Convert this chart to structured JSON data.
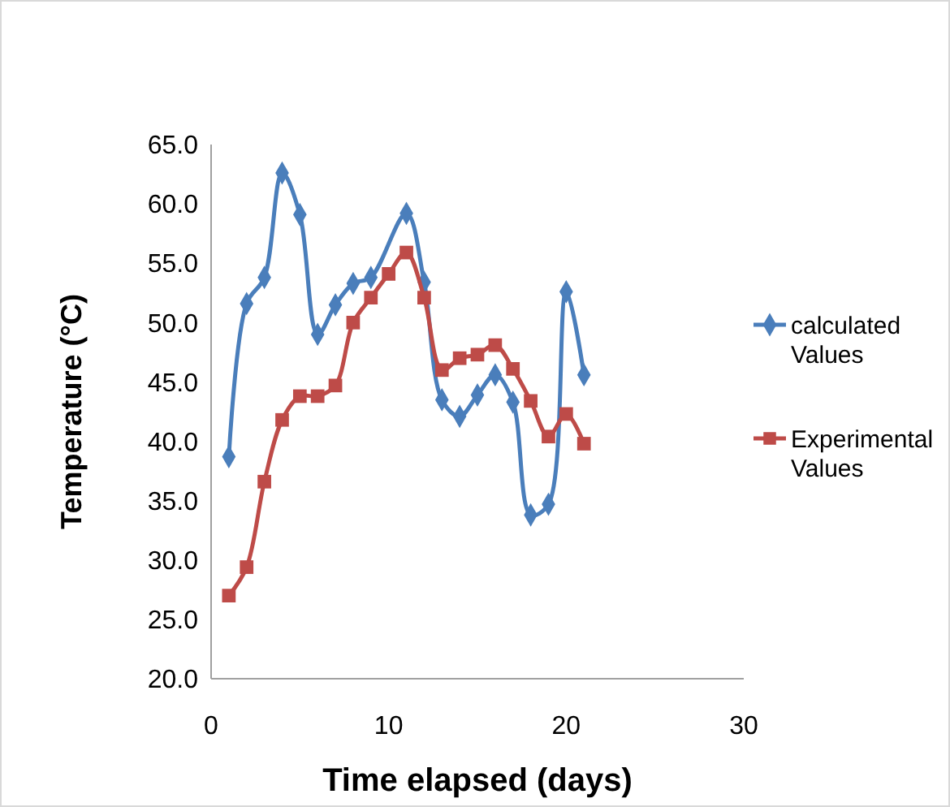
{
  "chart_data": {
    "type": "line",
    "xlabel": "Time elapsed (days)",
    "ylabel": "Temperature (°C)",
    "x": [
      1,
      2,
      3,
      4,
      5,
      6,
      7,
      8,
      9,
      10,
      11,
      12,
      13,
      14,
      15,
      16,
      17,
      18,
      19,
      20,
      21
    ],
    "series": [
      {
        "name": "calculated Values",
        "color": "#4a7ebb",
        "marker": "diamond",
        "values": [
          38.7,
          51.6,
          53.8,
          62.6,
          59.1,
          49.0,
          51.5,
          53.3,
          53.8,
          null,
          59.2,
          53.4,
          43.5,
          42.1,
          43.9,
          45.6,
          43.3,
          33.8,
          34.7,
          52.6,
          45.6
        ]
      },
      {
        "name": "Experimental Values",
        "color": "#be4b48",
        "marker": "square",
        "values": [
          27.0,
          29.4,
          36.6,
          41.8,
          43.8,
          43.8,
          44.7,
          50.0,
          52.1,
          54.1,
          55.9,
          52.1,
          46.0,
          47.0,
          47.3,
          48.1,
          46.1,
          43.4,
          40.4,
          42.3,
          39.8
        ]
      }
    ],
    "xlim": [
      0,
      30
    ],
    "xticks": [
      0,
      10,
      20,
      30
    ],
    "ylim": [
      20,
      65
    ],
    "yticks": [
      {
        "value": 20,
        "label": "20.0"
      },
      {
        "value": 25,
        "label": "25.0"
      },
      {
        "value": 30,
        "label": "30.0"
      },
      {
        "value": 35,
        "label": "35.0"
      },
      {
        "value": 40,
        "label": "40.0"
      },
      {
        "value": 45,
        "label": "45.0"
      },
      {
        "value": 50,
        "label": "50.0"
      },
      {
        "value": 55,
        "label": "55.0"
      },
      {
        "value": 60,
        "label": "60.0"
      },
      {
        "value": 65,
        "label": "65.0"
      }
    ],
    "grid": false,
    "legend": "right",
    "line_style": "solid"
  }
}
